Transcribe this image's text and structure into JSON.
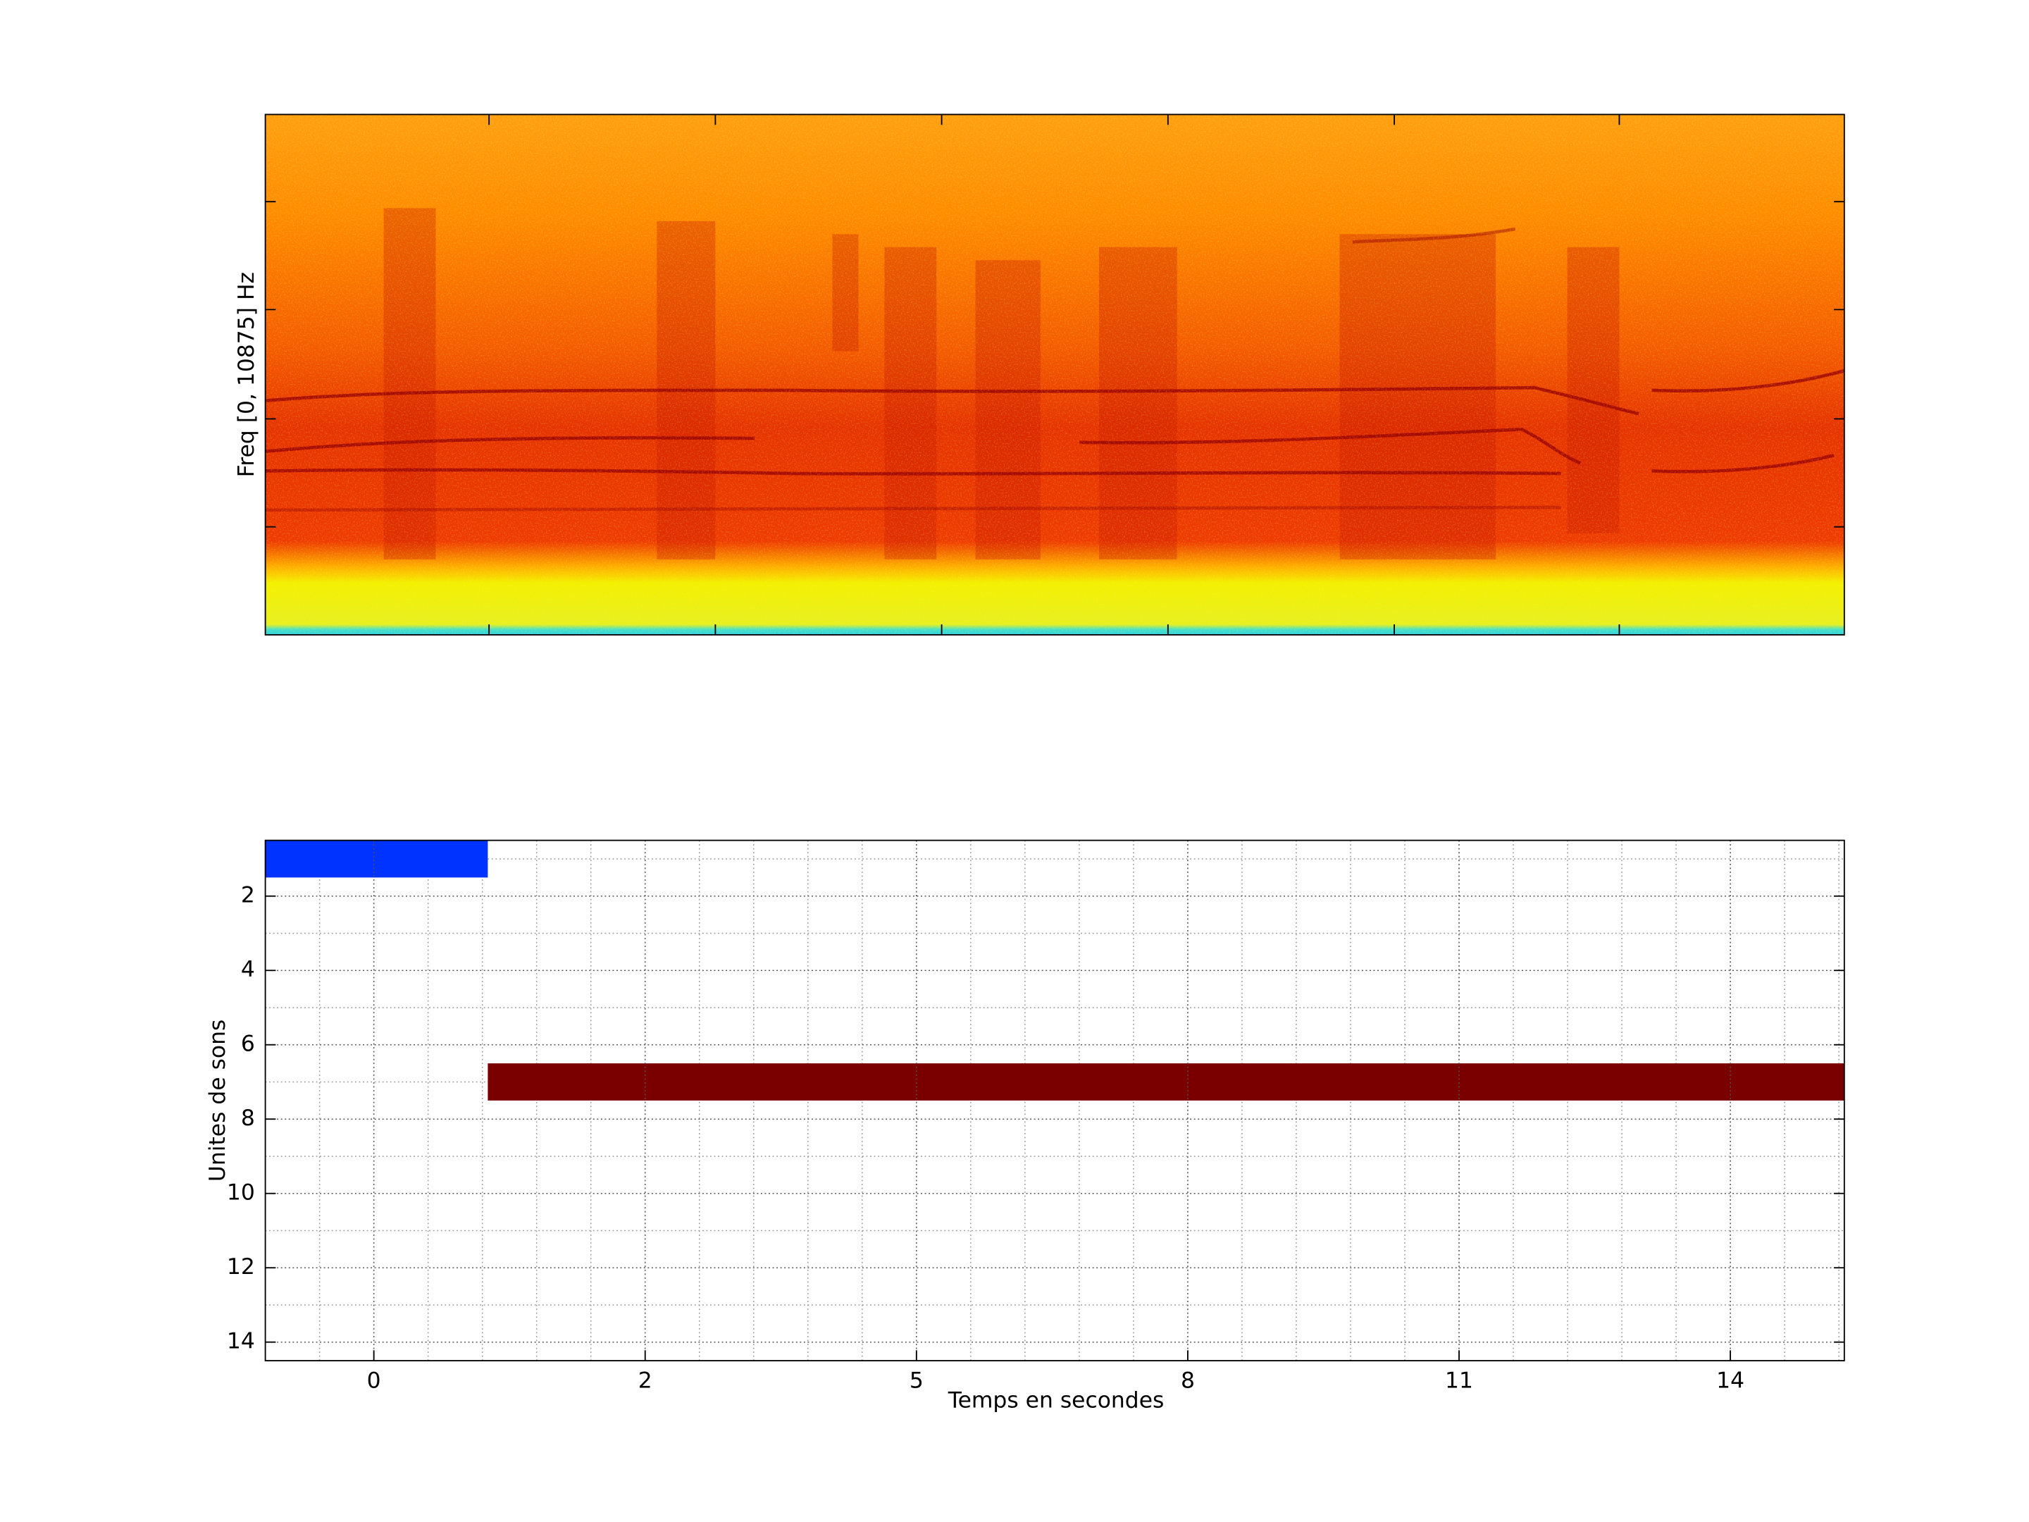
{
  "charts": [
    {
      "type": "spectrogram",
      "ylabel": "Freq [0, 10875] Hz"
    },
    {
      "type": "timeline",
      "xlabel": "Temps en secondes",
      "ylabel": "Unites de sons",
      "xlim": [
        0,
        29.1
      ],
      "xticks": [
        {
          "value": 2,
          "label": "0"
        },
        {
          "value": 7,
          "label": "2"
        },
        {
          "value": 12,
          "label": "5"
        },
        {
          "value": 17,
          "label": "8"
        },
        {
          "value": 22,
          "label": "11"
        },
        {
          "value": 27,
          "label": "14"
        }
      ],
      "ylim": [
        0.5,
        14.5
      ],
      "yticks": [
        2,
        4,
        6,
        8,
        10,
        12,
        14
      ],
      "y_reversed": true,
      "grid": true,
      "minor_grid": true,
      "segments": [
        {
          "row": 1,
          "start": 0,
          "end": 4.1,
          "color": "#0033ff"
        },
        {
          "row": 7,
          "start": 4.1,
          "end": 29.1,
          "color": "#7a0000"
        }
      ]
    }
  ]
}
